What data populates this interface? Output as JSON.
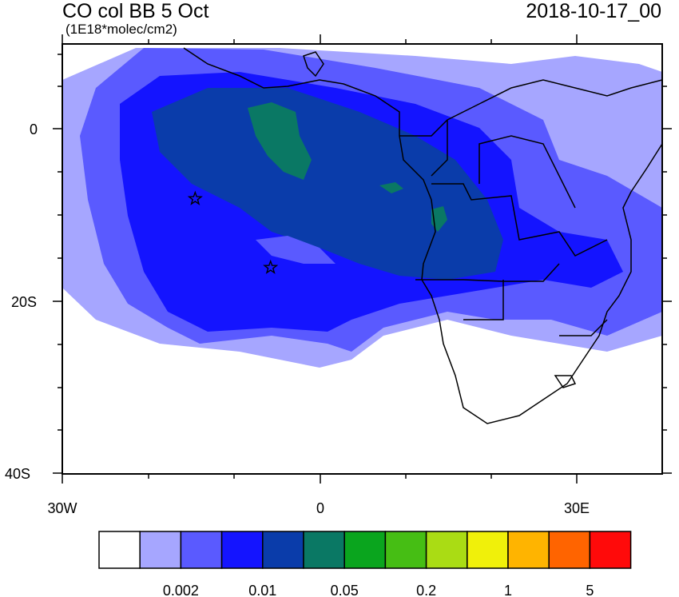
{
  "header": {
    "title": "CO col BB 5 Oct",
    "units": "(1E18*molec/cm2)",
    "datetime": "2018-10-17_00"
  },
  "axes": {
    "y_ticks": [
      {
        "label": "0",
        "lat": 0
      },
      {
        "label": "20S",
        "lat": -20
      },
      {
        "label": "40S",
        "lat": -40
      }
    ],
    "x_ticks": [
      {
        "label": "30W",
        "lon": -30
      },
      {
        "label": "0",
        "lon": 0
      },
      {
        "label": "30E",
        "lon": 30
      }
    ],
    "lon_range": [
      -30,
      40
    ],
    "lat_range": [
      -40,
      10
    ]
  },
  "colorbar": {
    "colors": [
      "#ffffff",
      "#a6a6ff",
      "#5a5aff",
      "#1414ff",
      "#0a3caa",
      "#0a7864",
      "#0aa51e",
      "#46be14",
      "#aadc14",
      "#f0f00a",
      "#ffb400",
      "#ff6400",
      "#ff0a0a"
    ],
    "tick_labels": [
      "0.002",
      "0.01",
      "0.05",
      "0.2",
      "1",
      "5"
    ]
  },
  "markers": [
    {
      "name": "station-star-1",
      "lon": -14.5,
      "lat": -8
    },
    {
      "name": "station-star-2",
      "lon": -5.7,
      "lat": -16
    }
  ]
}
